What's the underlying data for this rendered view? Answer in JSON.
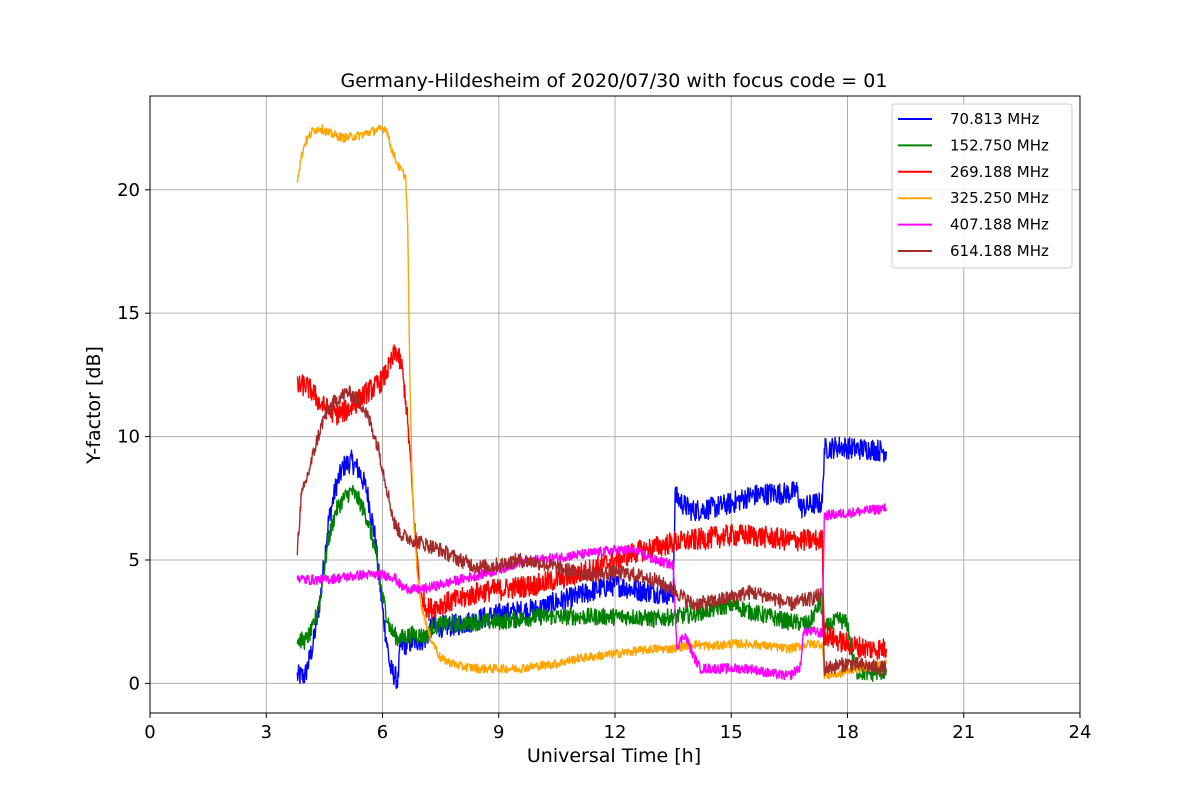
{
  "chart_data": {
    "type": "line",
    "title": "Germany-Hildesheim of 2020/07/30 with focus code = 01",
    "xlabel": "Universal Time [h]",
    "ylabel": "Y-factor [dB]",
    "xlim": [
      0,
      24
    ],
    "ylim": [
      -1.2,
      23.8
    ],
    "xticks": [
      "0",
      "3",
      "6",
      "9",
      "12",
      "15",
      "18",
      "21",
      "24"
    ],
    "yticks": [
      "0",
      "5",
      "10",
      "15",
      "20"
    ],
    "grid": true,
    "legend_position": "top-right",
    "series": [
      {
        "name": " 70.813 MHz",
        "color": "#0000ff",
        "noise": 0.45,
        "points": [
          [
            3.8,
            0.3
          ],
          [
            4.0,
            0.3
          ],
          [
            4.2,
            1.5
          ],
          [
            4.4,
            3.5
          ],
          [
            4.6,
            6.5
          ],
          [
            4.8,
            8.0
          ],
          [
            5.0,
            8.8
          ],
          [
            5.2,
            9.0
          ],
          [
            5.4,
            8.6
          ],
          [
            5.6,
            7.8
          ],
          [
            5.8,
            6.0
          ],
          [
            6.0,
            3.0
          ],
          [
            6.2,
            0.6
          ],
          [
            6.4,
            0.1
          ],
          [
            6.45,
            1.5
          ],
          [
            6.8,
            1.7
          ],
          [
            7.1,
            1.8
          ],
          [
            7.3,
            2.3
          ],
          [
            7.6,
            2.3
          ],
          [
            8.0,
            2.4
          ],
          [
            8.5,
            2.6
          ],
          [
            9.0,
            2.8
          ],
          [
            9.5,
            2.9
          ],
          [
            10.0,
            3.0
          ],
          [
            10.5,
            3.3
          ],
          [
            11.0,
            3.5
          ],
          [
            11.5,
            3.8
          ],
          [
            12.0,
            4.0
          ],
          [
            12.5,
            3.8
          ],
          [
            13.0,
            3.7
          ],
          [
            13.5,
            3.6
          ],
          [
            13.55,
            7.6
          ],
          [
            13.8,
            7.2
          ],
          [
            14.0,
            7.0
          ],
          [
            14.5,
            7.1
          ],
          [
            15.0,
            7.3
          ],
          [
            15.5,
            7.6
          ],
          [
            16.0,
            7.7
          ],
          [
            16.5,
            7.7
          ],
          [
            16.7,
            7.8
          ],
          [
            16.8,
            7.1
          ],
          [
            17.2,
            7.3
          ],
          [
            17.35,
            7.3
          ],
          [
            17.4,
            9.5
          ],
          [
            17.8,
            9.6
          ],
          [
            18.2,
            9.5
          ],
          [
            18.6,
            9.5
          ],
          [
            19.0,
            9.4
          ]
        ]
      },
      {
        "name": "152.750 MHz",
        "color": "#008000",
        "noise": 0.35,
        "points": [
          [
            3.8,
            1.8
          ],
          [
            4.0,
            1.7
          ],
          [
            4.2,
            2.2
          ],
          [
            4.4,
            3.5
          ],
          [
            4.6,
            5.8
          ],
          [
            4.8,
            7.0
          ],
          [
            5.0,
            7.5
          ],
          [
            5.2,
            7.8
          ],
          [
            5.4,
            7.4
          ],
          [
            5.6,
            6.7
          ],
          [
            5.8,
            5.5
          ],
          [
            6.0,
            3.5
          ],
          [
            6.2,
            2.2
          ],
          [
            6.4,
            1.8
          ],
          [
            6.8,
            2.0
          ],
          [
            7.1,
            1.9
          ],
          [
            7.3,
            2.3
          ],
          [
            7.6,
            2.4
          ],
          [
            8.0,
            2.4
          ],
          [
            8.5,
            2.5
          ],
          [
            9.0,
            2.5
          ],
          [
            9.5,
            2.6
          ],
          [
            10.0,
            2.7
          ],
          [
            10.5,
            2.7
          ],
          [
            11.0,
            2.7
          ],
          [
            11.5,
            2.7
          ],
          [
            12.0,
            2.7
          ],
          [
            12.5,
            2.7
          ],
          [
            13.0,
            2.6
          ],
          [
            13.5,
            2.7
          ],
          [
            14.0,
            2.8
          ],
          [
            14.5,
            3.0
          ],
          [
            15.0,
            3.2
          ],
          [
            15.5,
            2.9
          ],
          [
            16.0,
            2.7
          ],
          [
            16.5,
            2.5
          ],
          [
            17.0,
            2.4
          ],
          [
            17.3,
            3.3
          ],
          [
            17.4,
            2.2
          ],
          [
            17.8,
            2.6
          ],
          [
            18.0,
            2.4
          ],
          [
            18.2,
            0.5
          ],
          [
            18.6,
            0.4
          ],
          [
            19.0,
            0.5
          ]
        ]
      },
      {
        "name": "269.188 MHz",
        "color": "#ff0000",
        "noise": 0.45,
        "points": [
          [
            3.8,
            12.0
          ],
          [
            4.0,
            12.1
          ],
          [
            4.2,
            11.8
          ],
          [
            4.4,
            11.3
          ],
          [
            4.6,
            11.1
          ],
          [
            4.8,
            10.9
          ],
          [
            5.0,
            11.0
          ],
          [
            5.2,
            11.2
          ],
          [
            5.4,
            11.5
          ],
          [
            5.6,
            11.8
          ],
          [
            5.8,
            12.0
          ],
          [
            6.0,
            12.3
          ],
          [
            6.2,
            12.9
          ],
          [
            6.35,
            13.5
          ],
          [
            6.5,
            12.8
          ],
          [
            6.6,
            11.5
          ],
          [
            6.7,
            9.5
          ],
          [
            6.8,
            7.0
          ],
          [
            6.9,
            5.0
          ],
          [
            7.0,
            3.4
          ],
          [
            7.2,
            3.0
          ],
          [
            7.5,
            3.2
          ],
          [
            8.0,
            3.4
          ],
          [
            8.5,
            3.7
          ],
          [
            9.0,
            3.8
          ],
          [
            9.5,
            3.9
          ],
          [
            10.0,
            4.0
          ],
          [
            10.5,
            4.2
          ],
          [
            11.0,
            4.4
          ],
          [
            11.5,
            4.7
          ],
          [
            12.0,
            5.0
          ],
          [
            12.5,
            5.3
          ],
          [
            13.0,
            5.5
          ],
          [
            13.5,
            5.7
          ],
          [
            14.0,
            5.8
          ],
          [
            14.5,
            5.9
          ],
          [
            15.0,
            6.0
          ],
          [
            15.5,
            6.0
          ],
          [
            16.0,
            5.9
          ],
          [
            16.5,
            5.8
          ],
          [
            17.0,
            5.8
          ],
          [
            17.35,
            5.8
          ],
          [
            17.4,
            2.0
          ],
          [
            17.8,
            1.7
          ],
          [
            18.2,
            1.5
          ],
          [
            18.6,
            1.4
          ],
          [
            19.0,
            1.4
          ]
        ]
      },
      {
        "name": "325.250 MHz",
        "color": "#ffa500",
        "noise": 0.18,
        "points": [
          [
            3.8,
            20.4
          ],
          [
            3.9,
            21.3
          ],
          [
            4.0,
            21.9
          ],
          [
            4.2,
            22.4
          ],
          [
            4.4,
            22.5
          ],
          [
            4.6,
            22.3
          ],
          [
            5.0,
            22.1
          ],
          [
            5.4,
            22.2
          ],
          [
            5.8,
            22.4
          ],
          [
            6.1,
            22.5
          ],
          [
            6.2,
            21.8
          ],
          [
            6.4,
            21.0
          ],
          [
            6.6,
            20.5
          ],
          [
            6.65,
            18.5
          ],
          [
            6.7,
            13.0
          ],
          [
            6.75,
            9.0
          ],
          [
            6.8,
            6.8
          ],
          [
            6.9,
            4.5
          ],
          [
            7.0,
            3.2
          ],
          [
            7.2,
            2.0
          ],
          [
            7.5,
            1.0
          ],
          [
            8.0,
            0.7
          ],
          [
            8.5,
            0.6
          ],
          [
            9.0,
            0.6
          ],
          [
            9.5,
            0.6
          ],
          [
            10.0,
            0.7
          ],
          [
            10.5,
            0.8
          ],
          [
            11.0,
            1.0
          ],
          [
            11.5,
            1.1
          ],
          [
            12.0,
            1.2
          ],
          [
            12.5,
            1.3
          ],
          [
            13.0,
            1.4
          ],
          [
            13.5,
            1.4
          ],
          [
            14.0,
            1.6
          ],
          [
            14.5,
            1.5
          ],
          [
            15.0,
            1.6
          ],
          [
            15.5,
            1.6
          ],
          [
            16.0,
            1.5
          ],
          [
            16.5,
            1.4
          ],
          [
            17.0,
            1.6
          ],
          [
            17.35,
            1.6
          ],
          [
            17.4,
            0.3
          ],
          [
            17.8,
            0.4
          ],
          [
            18.2,
            0.6
          ],
          [
            18.6,
            0.7
          ],
          [
            19.0,
            0.8
          ]
        ]
      },
      {
        "name": "407.188 MHz",
        "color": "#ff00ff",
        "noise": 0.2,
        "points": [
          [
            3.8,
            4.3
          ],
          [
            4.0,
            4.2
          ],
          [
            4.5,
            4.2
          ],
          [
            5.0,
            4.3
          ],
          [
            5.5,
            4.4
          ],
          [
            6.0,
            4.4
          ],
          [
            6.3,
            4.3
          ],
          [
            6.5,
            3.9
          ],
          [
            6.8,
            3.8
          ],
          [
            7.0,
            3.8
          ],
          [
            7.5,
            4.0
          ],
          [
            8.0,
            4.2
          ],
          [
            8.5,
            4.4
          ],
          [
            9.0,
            4.6
          ],
          [
            9.5,
            4.9
          ],
          [
            10.0,
            5.0
          ],
          [
            10.5,
            5.1
          ],
          [
            11.0,
            5.2
          ],
          [
            11.5,
            5.3
          ],
          [
            12.0,
            5.4
          ],
          [
            12.5,
            5.4
          ],
          [
            13.0,
            5.0
          ],
          [
            13.5,
            4.8
          ],
          [
            13.6,
            1.5
          ],
          [
            13.8,
            2.0
          ],
          [
            14.0,
            1.2
          ],
          [
            14.2,
            0.6
          ],
          [
            14.5,
            0.6
          ],
          [
            15.0,
            0.6
          ],
          [
            15.5,
            0.6
          ],
          [
            16.0,
            0.4
          ],
          [
            16.5,
            0.3
          ],
          [
            16.8,
            0.7
          ],
          [
            16.85,
            2.1
          ],
          [
            17.2,
            2.1
          ],
          [
            17.35,
            2.0
          ],
          [
            17.4,
            6.8
          ],
          [
            18.0,
            6.9
          ],
          [
            18.5,
            7.0
          ],
          [
            19.0,
            7.1
          ]
        ]
      },
      {
        "name": "614.188 MHz",
        "color": "#a52a2a",
        "noise": 0.3,
        "points": [
          [
            3.8,
            5.4
          ],
          [
            3.9,
            7.5
          ],
          [
            4.1,
            8.6
          ],
          [
            4.3,
            9.8
          ],
          [
            4.5,
            10.8
          ],
          [
            4.7,
            11.3
          ],
          [
            4.9,
            11.6
          ],
          [
            5.1,
            11.8
          ],
          [
            5.3,
            11.6
          ],
          [
            5.5,
            11.2
          ],
          [
            5.7,
            10.5
          ],
          [
            5.9,
            9.5
          ],
          [
            6.1,
            8.0
          ],
          [
            6.3,
            6.5
          ],
          [
            6.5,
            6.0
          ],
          [
            7.0,
            5.7
          ],
          [
            7.5,
            5.4
          ],
          [
            8.0,
            5.0
          ],
          [
            8.5,
            4.7
          ],
          [
            9.0,
            4.8
          ],
          [
            9.5,
            5.0
          ],
          [
            10.0,
            4.9
          ],
          [
            10.5,
            4.7
          ],
          [
            11.0,
            4.5
          ],
          [
            11.5,
            4.4
          ],
          [
            12.0,
            4.5
          ],
          [
            12.5,
            4.4
          ],
          [
            13.0,
            4.2
          ],
          [
            13.5,
            3.8
          ],
          [
            14.0,
            3.2
          ],
          [
            14.5,
            3.3
          ],
          [
            15.0,
            3.5
          ],
          [
            15.5,
            3.7
          ],
          [
            16.0,
            3.5
          ],
          [
            16.5,
            3.2
          ],
          [
            17.0,
            3.4
          ],
          [
            17.35,
            3.6
          ],
          [
            17.4,
            0.6
          ],
          [
            18.0,
            0.8
          ],
          [
            18.5,
            0.7
          ],
          [
            19.0,
            0.6
          ]
        ]
      }
    ]
  }
}
